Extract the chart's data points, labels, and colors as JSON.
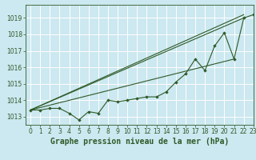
{
  "title": "Graphe pression niveau de la mer (hPa)",
  "background_color": "#cce8f0",
  "grid_color": "#ffffff",
  "line_color": "#2d5a27",
  "marker_color": "#2d5a27",
  "xlim": [
    -0.5,
    23
  ],
  "ylim": [
    1012.5,
    1019.8
  ],
  "yticks": [
    1013,
    1014,
    1015,
    1016,
    1017,
    1018,
    1019
  ],
  "xticks": [
    0,
    1,
    2,
    3,
    4,
    5,
    6,
    7,
    8,
    9,
    10,
    11,
    12,
    13,
    14,
    15,
    16,
    17,
    18,
    19,
    20,
    21,
    22,
    23
  ],
  "series": {
    "main": [
      1013.4,
      1013.4,
      1013.5,
      1013.5,
      1013.2,
      1012.8,
      1013.3,
      1013.2,
      1014.0,
      1013.9,
      1014.0,
      1014.1,
      1014.2,
      1014.2,
      1014.5,
      1015.1,
      1015.6,
      1016.5,
      1015.8,
      1017.3,
      1018.1,
      1016.5,
      1019.0,
      1019.2
    ],
    "straight_lines": [
      {
        "x": [
          0,
          22
        ],
        "y": [
          1013.4,
          1019.2
        ]
      },
      {
        "x": [
          0,
          22
        ],
        "y": [
          1013.4,
          1019.0
        ]
      },
      {
        "x": [
          0,
          21
        ],
        "y": [
          1013.4,
          1016.5
        ]
      }
    ]
  },
  "tick_fontsize": 5.5,
  "title_fontsize": 7,
  "figsize": [
    3.2,
    2.0
  ],
  "dpi": 100
}
